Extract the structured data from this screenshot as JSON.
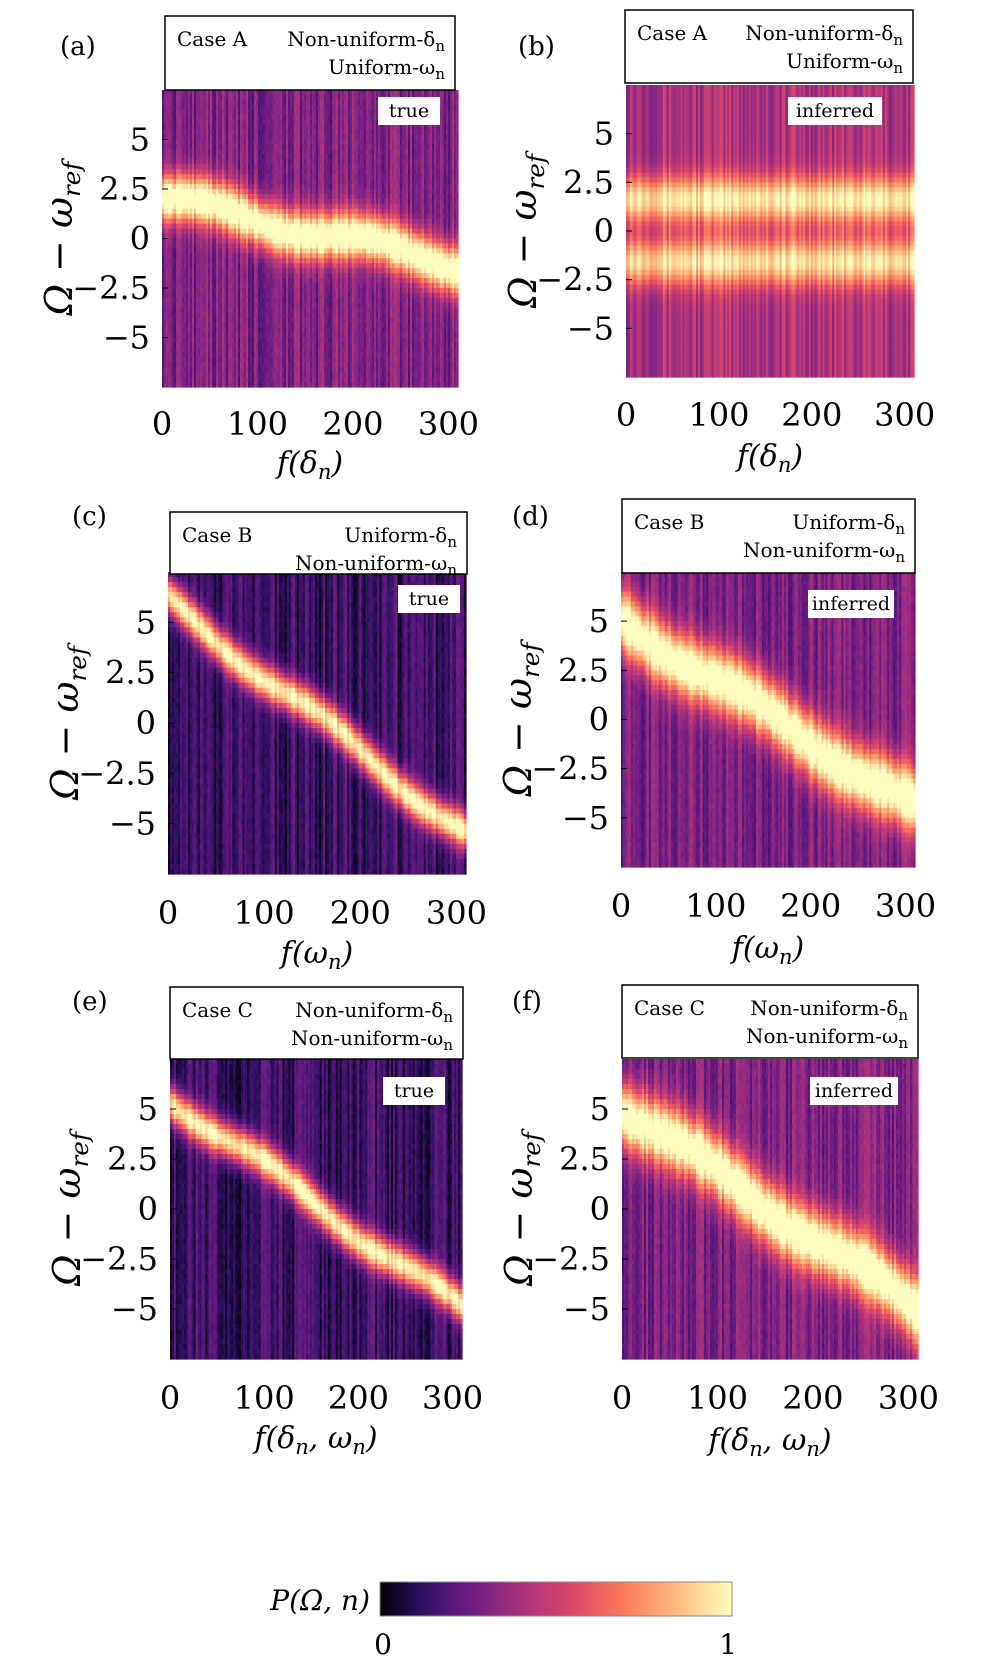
{
  "chart_data": [
    {
      "id": "a",
      "type": "heatmap",
      "panel_label": "(a)",
      "case": "Case A",
      "delta_dist": "Non-uniform-δ",
      "omega_dist": "Uniform-ω",
      "subscript": "n",
      "tag": "true",
      "trend": "weak",
      "xlabel": "f(δ",
      "xlabel_end": ")",
      "ylabel": "Ω − ω",
      "ylabel_sub": "ref",
      "x_ticks": [
        "0",
        "100",
        "200",
        "300"
      ],
      "x_tick_values": [
        0,
        100,
        200,
        300
      ],
      "xlim": [
        0,
        310
      ],
      "y_ticks": [
        "5",
        "2.5",
        "0",
        "−2.5",
        "−5"
      ],
      "y_tick_values": [
        5,
        2.5,
        0,
        -2.5,
        -5
      ],
      "ylim": [
        -7.5,
        7.5
      ],
      "ridge_start": 2.0,
      "ridge_end": -1.3
    },
    {
      "id": "b",
      "type": "heatmap",
      "panel_label": "(b)",
      "case": "Case A",
      "delta_dist": "Non-uniform-δ",
      "omega_dist": "Uniform-ω",
      "subscript": "n",
      "tag": "inferred",
      "trend": "flat",
      "xlabel": "f(δ",
      "xlabel_end": ")",
      "ylabel": "Ω − ω",
      "ylabel_sub": "ref",
      "x_ticks": [
        "0",
        "100",
        "200",
        "300"
      ],
      "x_tick_values": [
        0,
        100,
        200,
        300
      ],
      "xlim": [
        0,
        310
      ],
      "y_ticks": [
        "5",
        "2.5",
        "0",
        "−2.5",
        "−5"
      ],
      "y_tick_values": [
        5,
        2.5,
        0,
        -2.5,
        -5
      ],
      "ylim": [
        -7.5,
        7.5
      ],
      "ridge_start": 0.0,
      "ridge_end": 0.0
    },
    {
      "id": "c",
      "type": "heatmap",
      "panel_label": "(c)",
      "case": "Case B",
      "delta_dist": "Uniform-δ",
      "omega_dist": "Non-uniform-ω",
      "subscript": "n",
      "tag": "true",
      "trend": "sharp",
      "xlabel": "f(ω",
      "xlabel_end": ")",
      "ylabel": "Ω − ω",
      "ylabel_sub": "ref",
      "x_ticks": [
        "0",
        "100",
        "200",
        "300"
      ],
      "x_tick_values": [
        0,
        100,
        200,
        300
      ],
      "xlim": [
        0,
        310
      ],
      "y_ticks": [
        "5",
        "2.5",
        "0",
        "−2.5",
        "−5"
      ],
      "y_tick_values": [
        5,
        2.5,
        0,
        -2.5,
        -5
      ],
      "ylim": [
        -7.5,
        7.5
      ],
      "ridge_start": 6.0,
      "ridge_end": -5.5
    },
    {
      "id": "d",
      "type": "heatmap",
      "panel_label": "(d)",
      "case": "Case B",
      "delta_dist": "Uniform-δ",
      "omega_dist": "Non-uniform-ω",
      "subscript": "n",
      "tag": "inferred",
      "trend": "broad",
      "xlabel": "f(ω",
      "xlabel_end": ")",
      "ylabel": "Ω − ω",
      "ylabel_sub": "ref",
      "x_ticks": [
        "0",
        "100",
        "200",
        "300"
      ],
      "x_tick_values": [
        0,
        100,
        200,
        300
      ],
      "xlim": [
        0,
        310
      ],
      "y_ticks": [
        "5",
        "2.5",
        "0",
        "−2.5",
        "−5"
      ],
      "y_tick_values": [
        5,
        2.5,
        0,
        -2.5,
        -5
      ],
      "ylim": [
        -7.5,
        7.5
      ],
      "ridge_start": 5.0,
      "ridge_end": -4.5
    },
    {
      "id": "e",
      "type": "heatmap",
      "panel_label": "(e)",
      "case": "Case C",
      "delta_dist": "Non-uniform-δ",
      "omega_dist": "Non-uniform-ω",
      "subscript": "n",
      "tag": "true",
      "trend": "sharp",
      "xlabel": "f(δ",
      "xlabel_mid": ", ω",
      "xlabel_end": ")",
      "ylabel": "Ω − ω",
      "ylabel_sub": "ref",
      "x_ticks": [
        "0",
        "100",
        "200",
        "300"
      ],
      "x_tick_values": [
        0,
        100,
        200,
        300
      ],
      "xlim": [
        0,
        310
      ],
      "y_ticks": [
        "5",
        "2.5",
        "0",
        "−2.5",
        "−5"
      ],
      "y_tick_values": [
        5,
        2.5,
        0,
        -2.5,
        -5
      ],
      "ylim": [
        -7.5,
        7.5
      ],
      "ridge_start": 5.5,
      "ridge_end": -5.0
    },
    {
      "id": "f",
      "type": "heatmap",
      "panel_label": "(f)",
      "case": "Case C",
      "delta_dist": "Non-uniform-δ",
      "omega_dist": "Non-uniform-ω",
      "subscript": "n",
      "tag": "inferred",
      "trend": "broad",
      "xlabel": "f(δ",
      "xlabel_mid": ", ω",
      "xlabel_end": ")",
      "ylabel": "Ω − ω",
      "ylabel_sub": "ref",
      "x_ticks": [
        "0",
        "100",
        "200",
        "300"
      ],
      "x_tick_values": [
        0,
        100,
        200,
        300
      ],
      "xlim": [
        0,
        310
      ],
      "y_ticks": [
        "5",
        "2.5",
        "0",
        "−2.5",
        "−5"
      ],
      "y_tick_values": [
        5,
        2.5,
        0,
        -2.5,
        -5
      ],
      "ylim": [
        -7.5,
        7.5
      ],
      "ridge_start": 5.0,
      "ridge_end": -5.0
    }
  ],
  "colorbar": {
    "label": "P(Ω, n)",
    "min_label": "0",
    "max_label": "1",
    "range": [
      0,
      1
    ],
    "colors": [
      "#000004",
      "#2b115e",
      "#5f187f",
      "#8c2981",
      "#b73779",
      "#de4968",
      "#f7705c",
      "#fe9f6d",
      "#fecf92",
      "#fcfdbf"
    ]
  }
}
